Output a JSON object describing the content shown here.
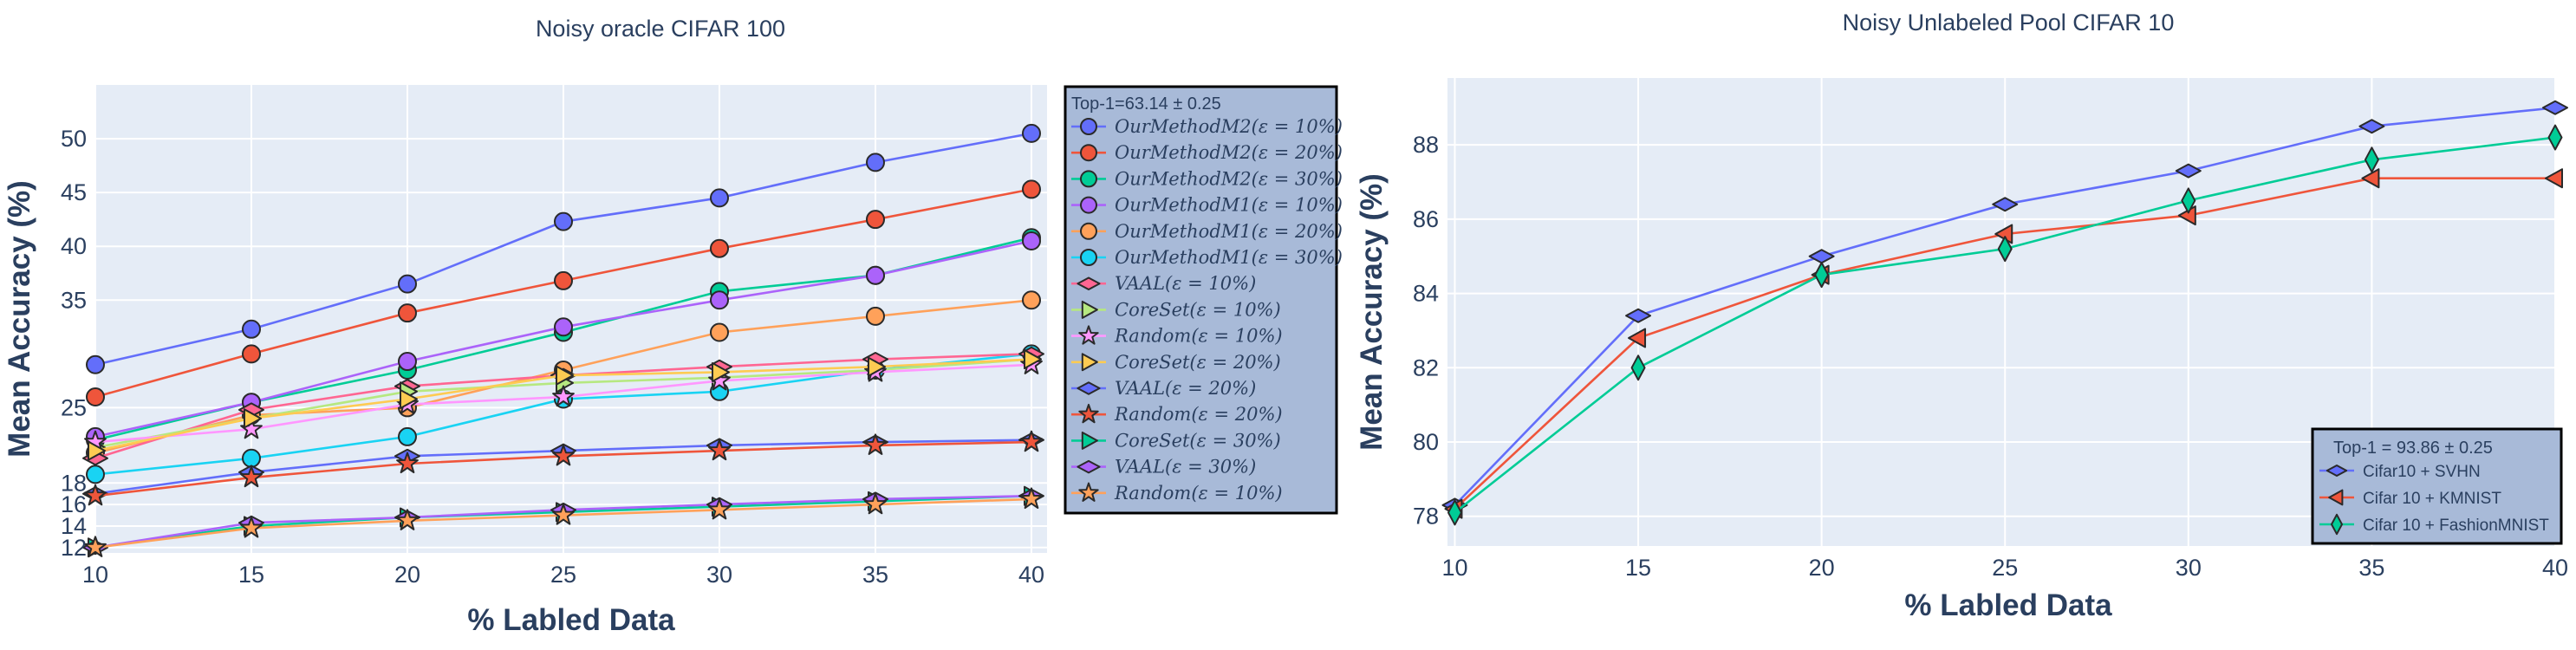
{
  "chart_data": [
    {
      "type": "line",
      "title": "Noisy oracle CIFAR 100",
      "xlabel": "% Labled Data",
      "ylabel": "Mean Accuracy (%)",
      "x": [
        10,
        15,
        20,
        25,
        30,
        35,
        40
      ],
      "xlim": [
        10,
        40.5
      ],
      "ylim": [
        11.5,
        55
      ],
      "xticks": [
        10,
        15,
        20,
        25,
        30,
        35,
        40
      ],
      "yticks": [
        12,
        14,
        16,
        18,
        25,
        35,
        40,
        45,
        50
      ],
      "grid": true,
      "legend_position": "right",
      "legend_title": "Top-1=63.14 ± 0.25",
      "series": [
        {
          "name": "OurMethodM2(ε = 10%)",
          "color": "#636efa",
          "marker": "circle",
          "values": [
            29.0,
            32.3,
            36.5,
            42.3,
            44.5,
            47.8,
            50.5
          ]
        },
        {
          "name": "OurMethodM2(ε = 20%)",
          "color": "#ef553b",
          "marker": "circle",
          "values": [
            26.0,
            30.0,
            33.8,
            36.8,
            39.8,
            42.5,
            45.3
          ]
        },
        {
          "name": "OurMethodM2(ε = 30%)",
          "color": "#00cc96",
          "marker": "circle",
          "values": [
            22.0,
            25.5,
            28.5,
            32.0,
            35.8,
            37.3,
            40.8
          ]
        },
        {
          "name": "OurMethodM1(ε = 10%)",
          "color": "#ab63fa",
          "marker": "circle",
          "values": [
            22.3,
            25.5,
            29.3,
            32.5,
            35.0,
            37.3,
            40.5
          ]
        },
        {
          "name": "OurMethodM1(ε = 20%)",
          "color": "#ffa15a",
          "marker": "circle",
          "values": [
            20.8,
            24.3,
            25.0,
            28.5,
            32.0,
            33.5,
            35.0
          ]
        },
        {
          "name": "OurMethodM1(ε = 30%)",
          "color": "#19d3f3",
          "marker": "circle",
          "values": [
            18.8,
            20.3,
            22.3,
            25.8,
            26.5,
            28.5,
            30.0
          ]
        },
        {
          "name": "VAAL(ε = 10%)",
          "color": "#ff6692",
          "marker": "diamond-wide",
          "values": [
            20.3,
            24.8,
            27.0,
            28.0,
            28.8,
            29.5,
            30.0
          ]
        },
        {
          "name": "CoreSet(ε = 10%)",
          "color": "#b6e880",
          "marker": "triangle-right",
          "values": [
            21.3,
            24.0,
            26.5,
            27.3,
            27.8,
            28.5,
            29.5
          ]
        },
        {
          "name": "Random(ε = 10%)",
          "color": "#ff97ff",
          "marker": "star",
          "values": [
            21.8,
            23.0,
            25.3,
            26.0,
            27.5,
            28.3,
            29.0
          ]
        },
        {
          "name": "CoreSet(ε = 20%)",
          "color": "#fecb52",
          "marker": "triangle-right",
          "values": [
            21.0,
            24.0,
            25.8,
            28.0,
            28.3,
            28.8,
            29.5
          ]
        },
        {
          "name": "VAAL(ε = 20%)",
          "color": "#636efa",
          "marker": "diamond-wide",
          "values": [
            17.0,
            19.0,
            20.5,
            21.0,
            21.5,
            21.8,
            22.0
          ]
        },
        {
          "name": "Random(ε = 20%)",
          "color": "#ef553b",
          "marker": "star",
          "values": [
            16.8,
            18.5,
            19.8,
            20.5,
            21.0,
            21.5,
            21.8
          ]
        },
        {
          "name": "CoreSet(ε = 30%)",
          "color": "#00cc96",
          "marker": "triangle-right",
          "values": [
            12.0,
            14.0,
            14.8,
            15.3,
            15.8,
            16.3,
            16.8
          ]
        },
        {
          "name": "VAAL(ε = 30%)",
          "color": "#ab63fa",
          "marker": "diamond-wide",
          "values": [
            12.0,
            14.3,
            14.8,
            15.5,
            16.0,
            16.5,
            16.8
          ]
        },
        {
          "name": "Random(ε = 10%)",
          "color": "#ffa15a",
          "marker": "star",
          "values": [
            12.0,
            13.8,
            14.5,
            15.0,
            15.5,
            16.0,
            16.5
          ]
        }
      ]
    },
    {
      "type": "line",
      "title": "Noisy Unlabeled Pool CIFAR 10",
      "xlabel": "% Labled Data",
      "ylabel": "Mean Accuracy (%)",
      "x": [
        10,
        15,
        20,
        25,
        30,
        35,
        40
      ],
      "xlim": [
        9.8,
        40
      ],
      "ylim": [
        77.2,
        89.8
      ],
      "xticks": [
        10,
        15,
        20,
        25,
        30,
        35,
        40
      ],
      "yticks": [
        78,
        80,
        82,
        84,
        86,
        88
      ],
      "grid": true,
      "legend_position": "bottom-right",
      "legend_title": "Top-1 = 93.86 ± 0.25",
      "series": [
        {
          "name": "Cifar10 + SVHN",
          "color": "#636efa",
          "marker": "diamond-wide",
          "values": [
            78.3,
            83.4,
            85.0,
            86.4,
            87.3,
            88.5,
            89.0
          ]
        },
        {
          "name": "Cifar 10 + KMNIST",
          "color": "#ef553b",
          "marker": "triangle-left",
          "values": [
            78.2,
            82.8,
            84.5,
            85.6,
            86.1,
            87.1,
            87.1
          ]
        },
        {
          "name": "Cifar 10 + FashionMNIST",
          "color": "#00cc96",
          "marker": "diamond-tall",
          "values": [
            78.1,
            82.0,
            84.5,
            85.2,
            86.5,
            87.6,
            88.2
          ]
        }
      ]
    }
  ]
}
